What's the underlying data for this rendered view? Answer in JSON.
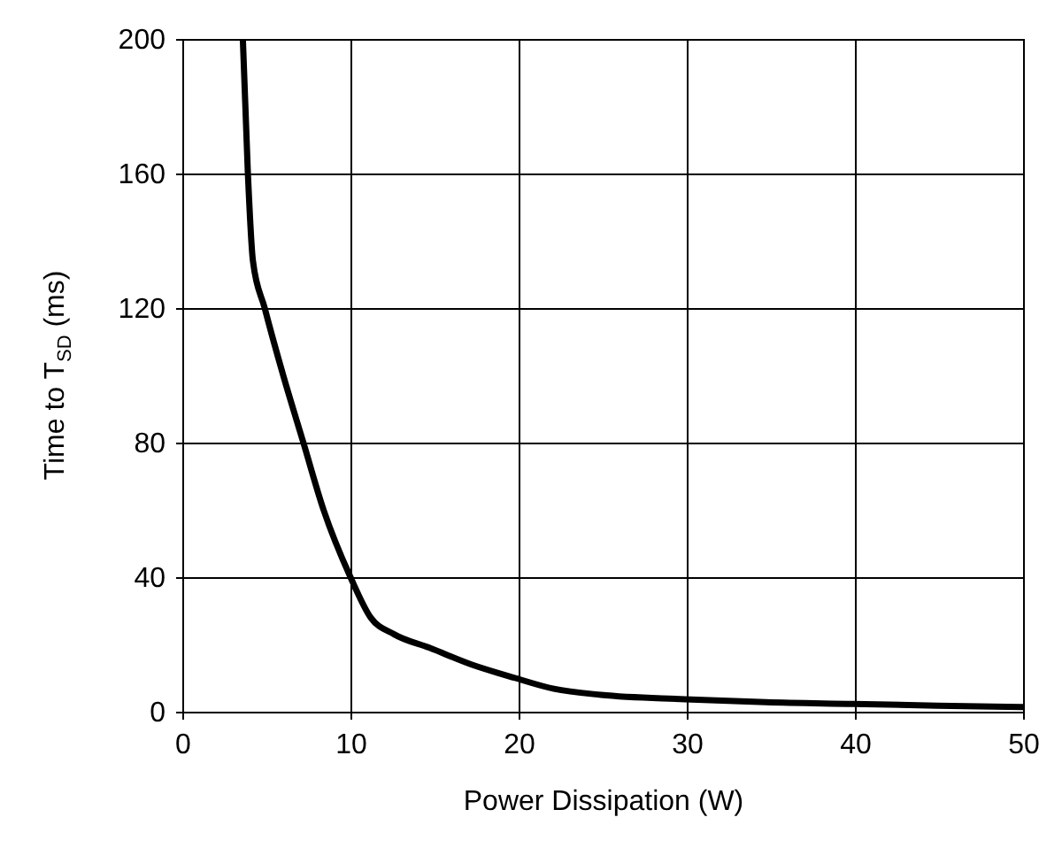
{
  "chart_data": {
    "type": "line",
    "xlabel": "Power Dissipation (W)",
    "ylabel": "Time to T$_{SD}$ (ms)",
    "x": [
      3.6,
      3.9,
      4.2,
      4.9,
      6.0,
      7.2,
      8.4,
      10,
      11.2,
      12.6,
      14.7,
      17.2,
      19.8,
      22.1,
      24.9,
      29.9,
      34.7,
      39.9,
      44.9,
      50
    ],
    "series": [
      {
        "color": "#000000",
        "values": [
          200,
          160,
          134,
          120,
          100,
          80,
          60,
          40,
          28,
          23,
          19,
          14,
          10,
          6.8,
          5,
          3.7,
          2.8,
          2.3,
          1.8,
          1.4
        ]
      }
    ],
    "xlim": [
      0,
      50
    ],
    "xticks": [
      0,
      10,
      20,
      30,
      40,
      50
    ],
    "ylim": [
      0,
      200
    ],
    "yticks": [
      0,
      40,
      80,
      120,
      160,
      200
    ],
    "grid": true,
    "marker": "none",
    "line_style": "solid"
  }
}
